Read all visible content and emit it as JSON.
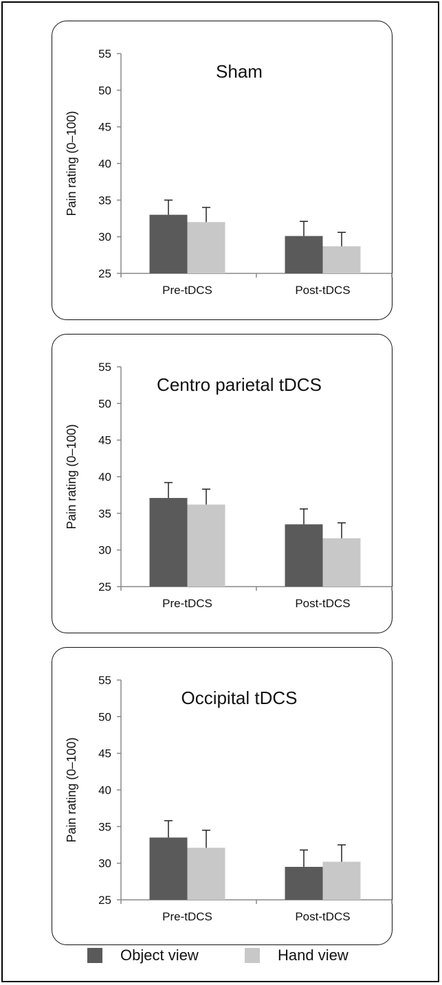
{
  "chart_data": [
    {
      "type": "bar",
      "title": "Sham",
      "ylabel": "Pain rating (0–100)",
      "xlabel": "",
      "ylim": [
        25,
        55
      ],
      "yticks": [
        25,
        30,
        35,
        40,
        45,
        50,
        55
      ],
      "categories": [
        "Pre-tDCS",
        "Post-tDCS"
      ],
      "series": [
        {
          "name": "Object view",
          "values": [
            33.0,
            30.1
          ],
          "errors": [
            2.0,
            2.0
          ]
        },
        {
          "name": "Hand view",
          "values": [
            32.0,
            28.7
          ],
          "errors": [
            2.0,
            1.9
          ]
        }
      ]
    },
    {
      "type": "bar",
      "title": "Centro parietal tDCS",
      "ylabel": "Pain rating (0–100)",
      "xlabel": "",
      "ylim": [
        25,
        55
      ],
      "yticks": [
        25,
        30,
        35,
        40,
        45,
        50,
        55
      ],
      "categories": [
        "Pre-tDCS",
        "Post-tDCS"
      ],
      "series": [
        {
          "name": "Object view",
          "values": [
            37.1,
            33.5
          ],
          "errors": [
            2.1,
            2.1
          ]
        },
        {
          "name": "Hand view",
          "values": [
            36.2,
            31.6
          ],
          "errors": [
            2.1,
            2.1
          ]
        }
      ]
    },
    {
      "type": "bar",
      "title": "Occipital tDCS",
      "ylabel": "Pain rating (0–100)",
      "xlabel": "",
      "ylim": [
        25,
        55
      ],
      "yticks": [
        25,
        30,
        35,
        40,
        45,
        50,
        55
      ],
      "categories": [
        "Pre-tDCS",
        "Post-tDCS"
      ],
      "series": [
        {
          "name": "Object view",
          "values": [
            33.5,
            29.5
          ],
          "errors": [
            2.3,
            2.3
          ]
        },
        {
          "name": "Hand view",
          "values": [
            32.1,
            30.2
          ],
          "errors": [
            2.4,
            2.3
          ]
        }
      ]
    }
  ],
  "legend": {
    "placement": "bottom",
    "items": [
      {
        "label": "Object view",
        "color": "#5a5a5a"
      },
      {
        "label": "Hand view",
        "color": "#c8c8c8"
      }
    ]
  },
  "colors": {
    "object_view": "#5a5a5a",
    "hand_view": "#c8c8c8",
    "axis": "#888888",
    "text": "#111111"
  }
}
